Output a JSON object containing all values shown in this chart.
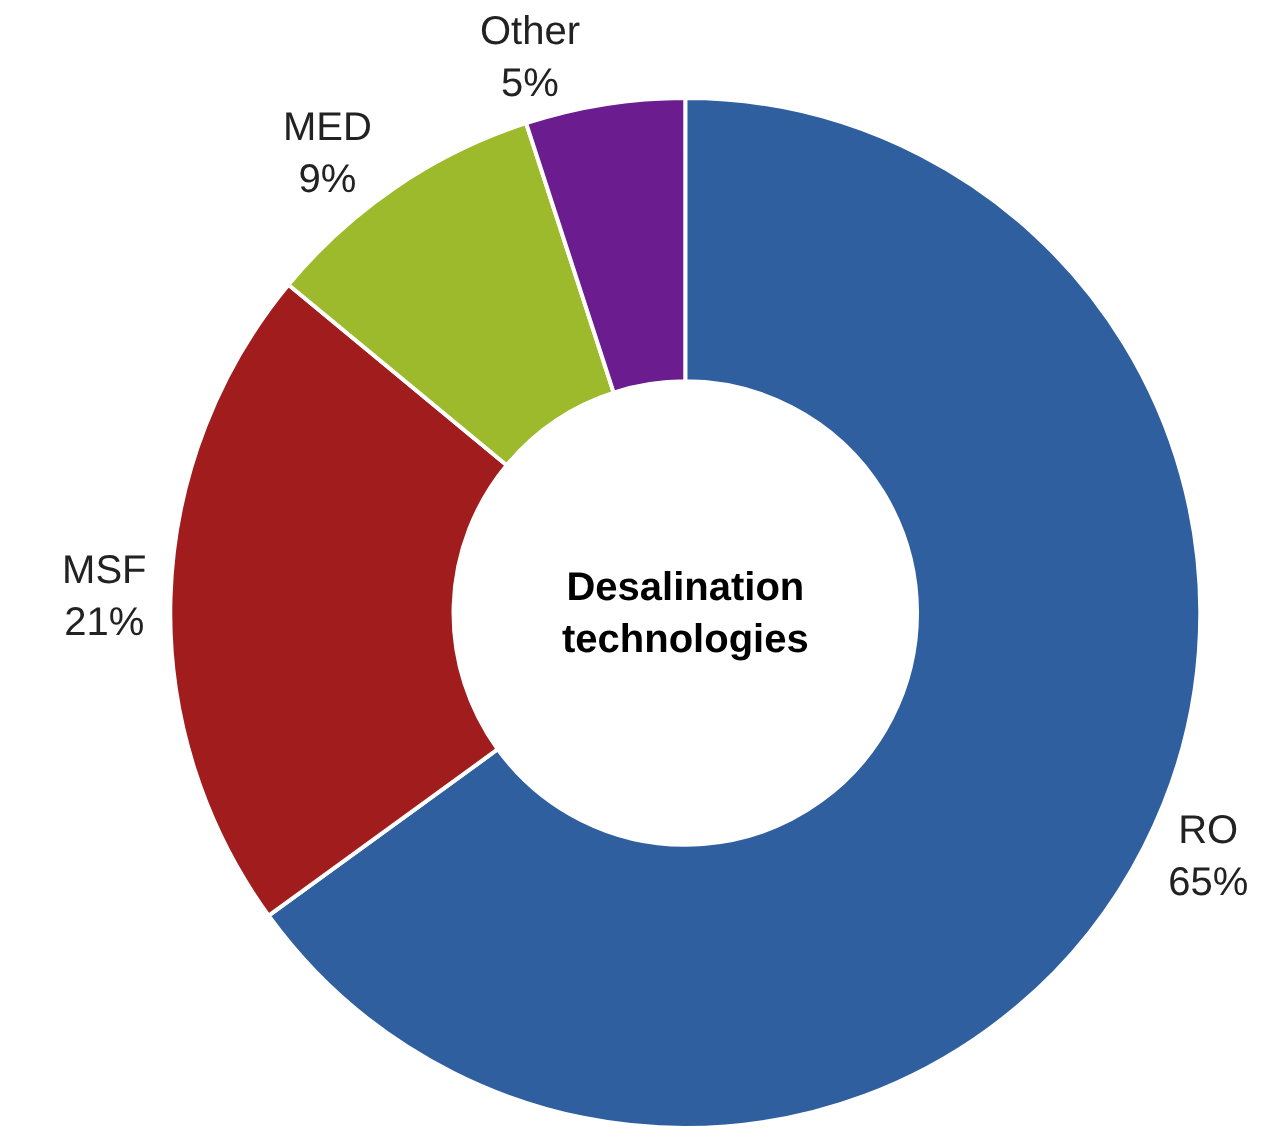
{
  "chart_data": {
    "type": "donut",
    "title": "Desalination\ntechnologies",
    "categories": [
      "RO",
      "MSF",
      "MED",
      "Other"
    ],
    "values": [
      65,
      21,
      9,
      5
    ],
    "value_labels": [
      "65%",
      "21%",
      "9%",
      "5%"
    ],
    "colors": [
      "#2f5f9f",
      "#a11d1d",
      "#9cba2b",
      "#6b1d8f"
    ],
    "legend": false
  }
}
